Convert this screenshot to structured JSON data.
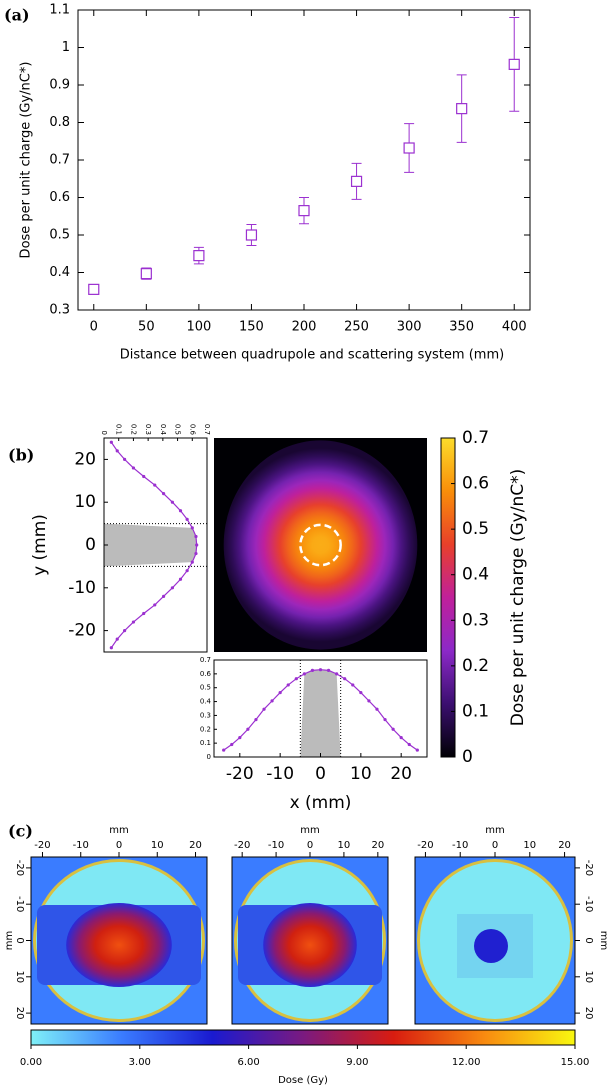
{
  "chart_data": [
    {
      "type": "scatter",
      "label": "(a)",
      "x_label": "Distance between quadrupole and scattering system (mm)",
      "y_label": "Dose per unit charge (Gy/nC*)",
      "x": [
        0,
        50,
        100,
        150,
        200,
        250,
        300,
        350,
        400
      ],
      "series": [
        {
          "color": "#9b30d0",
          "values": [
            0.355,
            0.397,
            0.445,
            0.5,
            0.565,
            0.643,
            0.732,
            0.837,
            0.955
          ],
          "errors": [
            0.01,
            0.015,
            0.022,
            0.028,
            0.035,
            0.048,
            0.065,
            0.09,
            0.125
          ]
        }
      ],
      "xlim": [
        -15,
        415
      ],
      "xticks": [
        0,
        50,
        100,
        150,
        200,
        250,
        300,
        350,
        400
      ],
      "ylim": [
        0.3,
        1.1
      ],
      "yticks": [
        0.3,
        0.4,
        0.5,
        0.6,
        0.7,
        0.8,
        0.9,
        1,
        1.1
      ]
    },
    {
      "type": "heatmap_profiles",
      "label": "(b)",
      "x_label": "x (mm)",
      "y_label": "y (mm)",
      "colorbar_label": "Dose per unit charge (Gy/nC*)",
      "x": [
        -24,
        -22,
        -20,
        -18,
        -16,
        -14,
        -12,
        -10,
        -8,
        -6,
        -4,
        -2,
        0,
        2,
        4,
        6,
        8,
        10,
        12,
        14,
        16,
        18,
        20,
        22,
        24
      ],
      "values": [
        0.05,
        0.09,
        0.14,
        0.2,
        0.27,
        0.345,
        0.405,
        0.465,
        0.52,
        0.565,
        0.6,
        0.625,
        0.63,
        0.625,
        0.6,
        0.565,
        0.52,
        0.465,
        0.405,
        0.345,
        0.27,
        0.2,
        0.14,
        0.09,
        0.05
      ],
      "color": "#9b30d0",
      "shade": [
        -5,
        5
      ],
      "xlim": [
        -26.4,
        26.4
      ],
      "xticks": [
        -20,
        -10,
        0,
        10,
        20
      ],
      "ylim": [
        -25,
        25
      ],
      "yticks": [
        -20,
        -10,
        0,
        10,
        20
      ],
      "zlim": [
        0,
        0.7
      ],
      "zticks": [
        0,
        0.1,
        0.2,
        0.3,
        0.4,
        0.5,
        0.6,
        0.7
      ],
      "colormap": [
        "#000004",
        "#3b0f70",
        "#8c29c8",
        "#c0209a",
        "#e8402a",
        "#f98e09",
        "#fcdc2b"
      ]
    },
    {
      "type": "image",
      "label": "(c)",
      "x_label": "mm",
      "y_label": "mm",
      "xlim": [
        -23,
        23
      ],
      "ticks": [
        -20,
        -10,
        0,
        10,
        20
      ],
      "colorbar_label": "Dose (Gy)",
      "zlim": [
        0,
        15
      ],
      "zticks": [
        {
          "value": 0,
          "label": "0.00"
        },
        {
          "value": 3,
          "label": "3.00"
        },
        {
          "value": 6,
          "label": "6.00"
        },
        {
          "value": 9,
          "label": "9.00"
        },
        {
          "value": 12,
          "label": "12.00"
        },
        {
          "value": 15,
          "label": "15.00"
        }
      ],
      "colormap": [
        "#7ff0f8",
        "#3a7cff",
        "#1a1ad0",
        "#7a1a80",
        "#d81c10",
        "#f88a10",
        "#f8f810"
      ]
    }
  ]
}
